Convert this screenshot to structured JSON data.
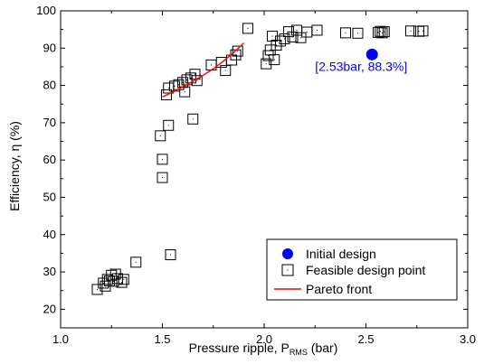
{
  "chart_data": {
    "type": "scatter",
    "xlabel": {
      "main": "Pressure ripple, P",
      "sub": "RMS",
      "unit": " (bar)"
    },
    "ylabel": "Efficiency, η (%)",
    "xlim": [
      1.0,
      3.0
    ],
    "ylim": [
      15,
      100
    ],
    "xticks": [
      "1.0",
      "1.5",
      "2.0",
      "2.5",
      "3.0"
    ],
    "yticks": [
      "20",
      "30",
      "40",
      "50",
      "60",
      "70",
      "80",
      "90",
      "100"
    ],
    "grid": false,
    "legend_position": "bottom-right",
    "series": [
      {
        "name": "Initial design",
        "marker": "filled-circle",
        "color": "#0000ff",
        "points": [
          [
            2.53,
            88.3
          ]
        ]
      },
      {
        "name": "Feasible design point",
        "marker": "open-square",
        "color": "#000000",
        "points": [
          [
            1.18,
            25.3
          ],
          [
            1.21,
            27.0
          ],
          [
            1.22,
            26.2
          ],
          [
            1.23,
            28.0
          ],
          [
            1.24,
            27.6
          ],
          [
            1.25,
            29.1
          ],
          [
            1.26,
            27.5
          ],
          [
            1.27,
            29.4
          ],
          [
            1.28,
            28.2
          ],
          [
            1.3,
            27.2
          ],
          [
            1.31,
            28.0
          ],
          [
            1.37,
            32.6
          ],
          [
            1.49,
            66.5
          ],
          [
            1.5,
            60.2
          ],
          [
            1.5,
            55.3
          ],
          [
            1.52,
            77.5
          ],
          [
            1.53,
            79.3
          ],
          [
            1.53,
            69.3
          ],
          [
            1.54,
            34.6
          ],
          [
            1.56,
            79.8
          ],
          [
            1.58,
            80.2
          ],
          [
            1.6,
            80.8
          ],
          [
            1.61,
            78.3
          ],
          [
            1.62,
            81.5
          ],
          [
            1.64,
            82.0
          ],
          [
            1.65,
            71.0
          ],
          [
            1.66,
            83.0
          ],
          [
            1.67,
            81.3
          ],
          [
            1.74,
            85.5
          ],
          [
            1.79,
            86.2
          ],
          [
            1.81,
            84.0
          ],
          [
            1.84,
            86.8
          ],
          [
            1.86,
            88.2
          ],
          [
            1.87,
            89.2
          ],
          [
            1.92,
            95.3
          ],
          [
            2.01,
            85.8
          ],
          [
            2.02,
            88.0
          ],
          [
            2.03,
            89.5
          ],
          [
            2.04,
            93.2
          ],
          [
            2.05,
            86.9
          ],
          [
            2.06,
            90.8
          ],
          [
            2.08,
            91.9
          ],
          [
            2.1,
            92.5
          ],
          [
            2.12,
            94.4
          ],
          [
            2.14,
            93.0
          ],
          [
            2.16,
            94.8
          ],
          [
            2.18,
            92.8
          ],
          [
            2.21,
            94.3
          ],
          [
            2.26,
            94.8
          ],
          [
            2.4,
            94.1
          ],
          [
            2.46,
            94.0
          ],
          [
            2.56,
            94.2
          ],
          [
            2.57,
            94.5
          ],
          [
            2.58,
            94.1
          ],
          [
            2.59,
            94.4
          ],
          [
            2.72,
            94.6
          ],
          [
            2.76,
            94.5
          ],
          [
            2.78,
            94.6
          ]
        ]
      },
      {
        "name": "Pareto front",
        "type": "line",
        "color": "#ff0000",
        "points": [
          [
            1.5,
            76.9
          ],
          [
            1.55,
            78.2
          ],
          [
            1.6,
            79.6
          ],
          [
            1.65,
            81.1
          ],
          [
            1.7,
            82.7
          ],
          [
            1.75,
            84.5
          ],
          [
            1.8,
            86.5
          ],
          [
            1.85,
            88.8
          ],
          [
            1.9,
            91.4
          ]
        ]
      }
    ],
    "annotations": [
      {
        "text": "[2.53bar, 88.3%]",
        "x": 2.53,
        "y": 88.3,
        "color": "#0000ff"
      }
    ]
  }
}
